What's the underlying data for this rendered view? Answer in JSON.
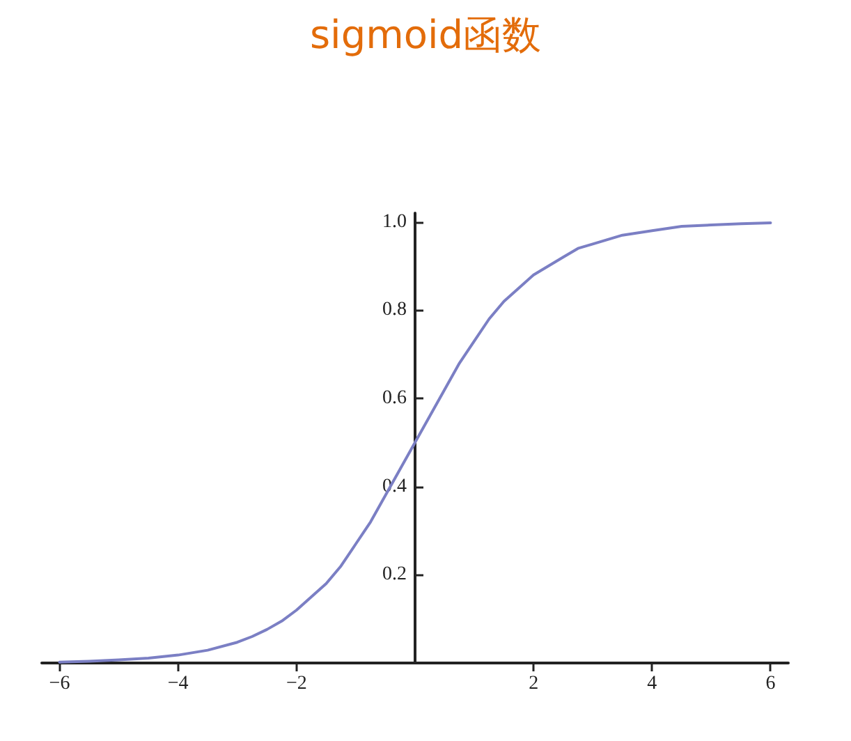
{
  "chart_data": {
    "type": "line",
    "title": "sigmoid函数",
    "x": [
      -6,
      -5.5,
      -5,
      -4.5,
      -4,
      -3.5,
      -3,
      -2.75,
      -2.5,
      -2.25,
      -2,
      -1.75,
      -1.5,
      -1.25,
      -1,
      -0.75,
      -0.5,
      -0.25,
      0,
      0.25,
      0.5,
      0.75,
      1,
      1.25,
      1.5,
      1.75,
      2,
      2.25,
      2.5,
      2.75,
      3,
      3.5,
      4,
      4.5,
      5,
      5.5,
      6
    ],
    "series": [
      {
        "color": "#7b7fc4",
        "values": [
          0.002,
          0.004,
          0.007,
          0.011,
          0.018,
          0.029,
          0.047,
          0.06,
          0.076,
          0.095,
          0.12,
          0.15,
          0.18,
          0.22,
          0.27,
          0.32,
          0.38,
          0.44,
          0.5,
          0.56,
          0.62,
          0.68,
          0.73,
          0.78,
          0.82,
          0.85,
          0.88,
          0.9,
          0.92,
          0.94,
          0.95,
          0.97,
          0.98,
          0.99,
          0.993,
          0.996,
          0.998
        ]
      }
    ],
    "xlim": [
      -6.3,
      6.3
    ],
    "xticks": [
      -6,
      -4,
      -2,
      2,
      4,
      6
    ],
    "ylim": [
      0,
      1.02
    ],
    "yticks": [
      0.2,
      0.4,
      0.6,
      0.8,
      {
        "value": 1,
        "label": "1.0"
      }
    ],
    "grid": false,
    "marker": "none",
    "line_style": "solid"
  }
}
